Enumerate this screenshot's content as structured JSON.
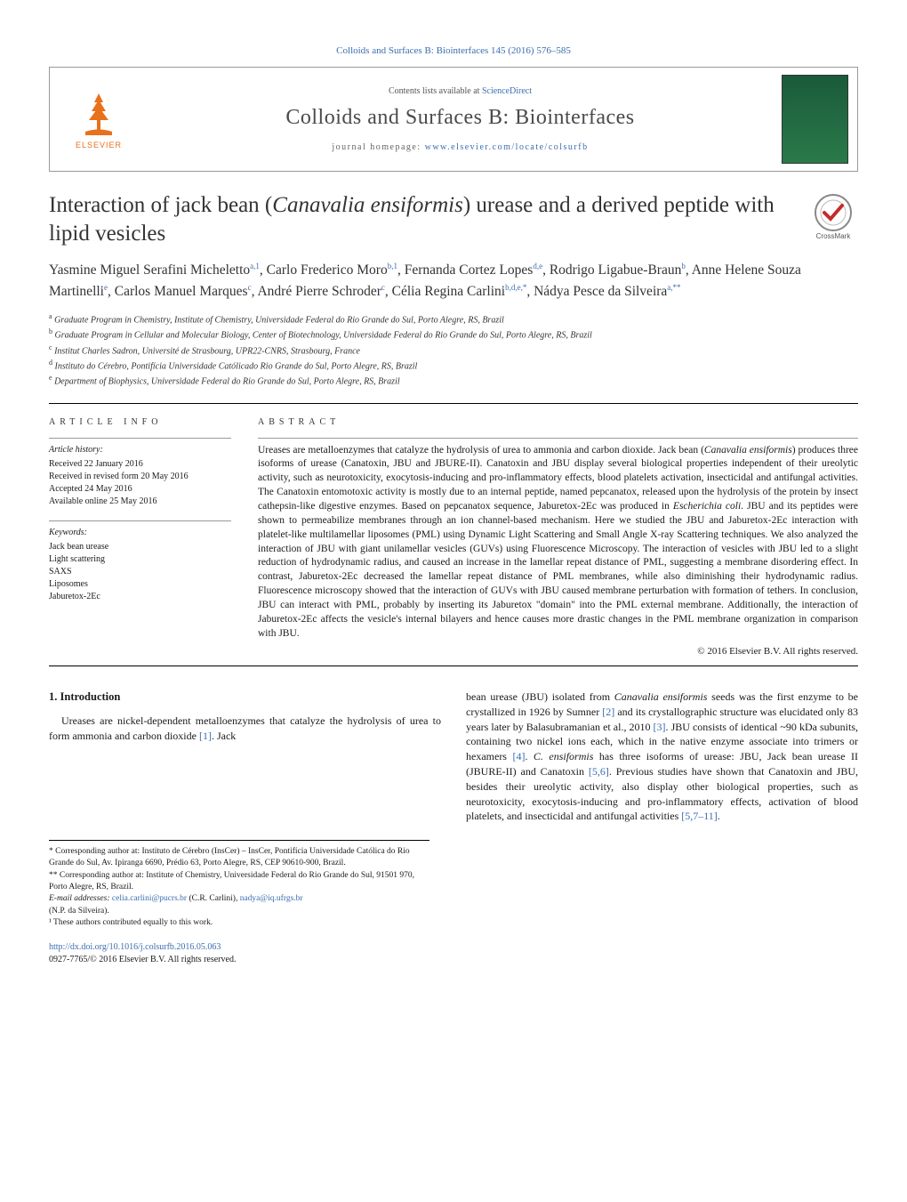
{
  "top_citation": "Colloids and Surfaces B: Biointerfaces 145 (2016) 576–585",
  "header": {
    "contents_prefix": "Contents lists available at ",
    "contents_link": "ScienceDirect",
    "journal_name": "Colloids and Surfaces B: Biointerfaces",
    "homepage_prefix": "journal homepage: ",
    "homepage_url": "www.elsevier.com/locate/colsurfb",
    "elsevier_label": "ELSEVIER"
  },
  "title": "Interaction of jack bean (Canavalia ensiformis) urease and a derived peptide with lipid vesicles",
  "title_italic_part": "Canavalia ensiformis",
  "crossmark_label": "CrossMark",
  "authors_html": "Yasmine Miguel Serafini Micheletto<sup>a,1</sup>, Carlo Frederico Moro<sup>b,1</sup>, Fernanda Cortez Lopes<sup>d,e</sup>, Rodrigo Ligabue-Braun<sup>b</sup>, Anne Helene Souza Martinelli<sup>e</sup>, Carlos Manuel Marques<sup>c</sup>, André Pierre Schroder<sup>c</sup>, Célia Regina Carlini<sup>b,d,e,*</sup>, Nádya Pesce da Silveira<sup>a,**</sup>",
  "affiliations": [
    {
      "sup": "a",
      "text": "Graduate Program in Chemistry, Institute of Chemistry, Universidade Federal do Rio Grande do Sul, Porto Alegre, RS, Brazil"
    },
    {
      "sup": "b",
      "text": "Graduate Program in Cellular and Molecular Biology, Center of Biotechnology, Universidade Federal do Rio Grande do Sul, Porto Alegre, RS, Brazil"
    },
    {
      "sup": "c",
      "text": "Institut Charles Sadron, Université de Strasbourg, UPR22-CNRS, Strasbourg, France"
    },
    {
      "sup": "d",
      "text": "Instituto do Cérebro, Pontifícia Universidade Católicado Rio Grande do Sul, Porto Alegre, RS, Brazil"
    },
    {
      "sup": "e",
      "text": "Department of Biophysics, Universidade Federal do Rio Grande do Sul, Porto Alegre, RS, Brazil"
    }
  ],
  "article_info": {
    "heading": "ARTICLE INFO",
    "history_label": "Article history:",
    "received": "Received 22 January 2016",
    "revised": "Received in revised form 20 May 2016",
    "accepted": "Accepted 24 May 2016",
    "online": "Available online 25 May 2016",
    "keywords_label": "Keywords:",
    "keywords": [
      "Jack bean urease",
      "Light scattering",
      "SAXS",
      "Liposomes",
      "Jaburetox-2Ec"
    ]
  },
  "abstract": {
    "heading": "ABSTRACT",
    "text": "Ureases are metalloenzymes that catalyze the hydrolysis of urea to ammonia and carbon dioxide. Jack bean (Canavalia ensiformis) produces three isoforms of urease (Canatoxin, JBU and JBURE-II). Canatoxin and JBU display several biological properties independent of their ureolytic activity, such as neurotoxicity, exocytosis-inducing and pro-inflammatory effects, blood platelets activation, insecticidal and antifungal activities. The Canatoxin entomotoxic activity is mostly due to an internal peptide, named pepcanatox, released upon the hydrolysis of the protein by insect cathepsin-like digestive enzymes. Based on pepcanatox sequence, Jaburetox-2Ec was produced in Escherichia coli. JBU and its peptides were shown to permeabilize membranes through an ion channel-based mechanism. Here we studied the JBU and Jaburetox-2Ec interaction with platelet-like multilamellar liposomes (PML) using Dynamic Light Scattering and Small Angle X-ray Scattering techniques. We also analyzed the interaction of JBU with giant unilamellar vesicles (GUVs) using Fluorescence Microscopy. The interaction of vesicles with JBU led to a slight reduction of hydrodynamic radius, and caused an increase in the lamellar repeat distance of PML, suggesting a membrane disordering effect. In contrast, Jaburetox-2Ec decreased the lamellar repeat distance of PML membranes, while also diminishing their hydrodynamic radius. Fluorescence microscopy showed that the interaction of GUVs with JBU caused membrane perturbation with formation of tethers. In conclusion, JBU can interact with PML, probably by inserting its Jaburetox \"domain\" into the PML external membrane. Additionally, the interaction of Jaburetox-2Ec affects the vesicle's internal bilayers and hence causes more drastic changes in the PML membrane organization in comparison with JBU.",
    "copyright": "© 2016 Elsevier B.V. All rights reserved."
  },
  "intro": {
    "heading": "1. Introduction",
    "para1": "Ureases are nickel-dependent metalloenzymes that catalyze the hydrolysis of urea to form ammonia and carbon dioxide [1]. Jack",
    "para2_pre": "bean urease (JBU) isolated from Canavalia ensiformis seeds was the first enzyme to be crystallized in 1926 by Sumner ",
    "para2_ref2": "[2]",
    "para2_mid": " and its crystallographic structure was elucidated only 83 years later by Balasubramanian et al., 2010 ",
    "para2_ref3": "[3]",
    "para2_mid2": ". JBU consists of identical ~90 kDa subunits, containing two nickel ions each, which in the native enzyme associate into trimers or hexamers ",
    "para2_ref4": "[4]",
    "para2_mid3": ". C. ensiformis has three isoforms of urease: JBU, Jack bean urease II (JBURE-II) and Canatoxin ",
    "para2_ref56": "[5,6]",
    "para2_mid4": ". Previous studies have shown that Canatoxin and JBU, besides their ureolytic activity, also display other biological properties, such as neurotoxicity, exocytosis-inducing and pro-inflammatory effects, activation of blood platelets, and insecticidal and antifungal activities ",
    "para2_ref5711": "[5,7–11]",
    "para2_end": "."
  },
  "footnotes": {
    "corr1": "* Corresponding author at: Instituto de Cérebro (InsCer) – InsCer, Pontifícia Universidade Católica do Rio Grande do Sul, Av. Ipiranga 6690, Prédio 63, Porto Alegre, RS, CEP 90610-900, Brazil.",
    "corr2": "** Corresponding author at: Institute of Chemistry, Universidade Federal do Rio Grande do Sul, 91501 970, Porto Alegre, RS, Brazil.",
    "emails_label": "E-mail addresses: ",
    "email1": "celia.carlini@pucrs.br",
    "email1_who": " (C.R. Carlini), ",
    "email2": "nadya@iq.ufrgs.br",
    "email2_who": " (N.P. da Silveira).",
    "equal": "¹ These authors contributed equally to this work."
  },
  "doi": {
    "url": "http://dx.doi.org/10.1016/j.colsurfb.2016.05.063",
    "issn_line": "0927-7765/© 2016 Elsevier B.V. All rights reserved."
  },
  "colors": {
    "link": "#3b6db0",
    "elsevier_orange": "#e8711c",
    "cover_green": "#1a5a3a"
  }
}
